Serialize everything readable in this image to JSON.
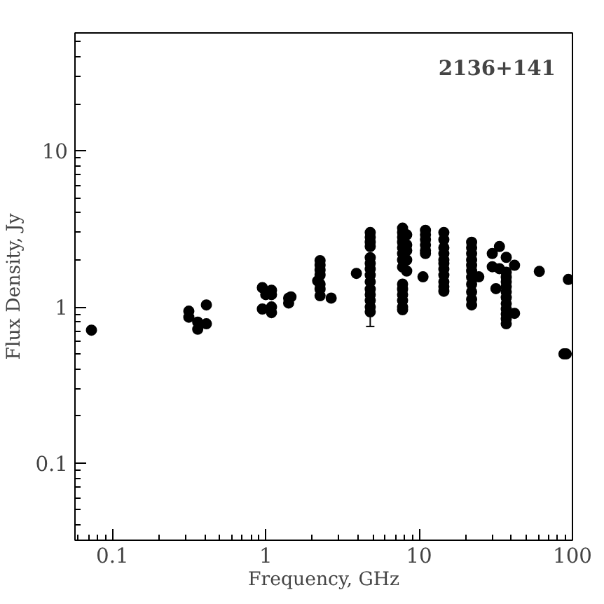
{
  "chart_data": {
    "type": "scatter",
    "xlabel": "Frequency, GHz",
    "ylabel": "Flux Density, Jy",
    "annotations": [
      "2136+141"
    ],
    "log": "xy",
    "marker": "circle",
    "xlim": [
      0.057,
      100
    ],
    "ylim": [
      0.032,
      57
    ],
    "xticks": [
      {
        "value": 0.1,
        "label": "0.1"
      },
      1,
      10,
      100
    ],
    "yticks": [
      {
        "value": 0.1,
        "label": "0.1"
      },
      1,
      10
    ],
    "series": [
      {
        "color": "#000000",
        "x": [
          0.073,
          0.315,
          0.315,
          0.36,
          0.36,
          0.41,
          0.41,
          0.95,
          0.95,
          1.0,
          1.09,
          1.09,
          1.09,
          1.09,
          1.41,
          1.41,
          1.46,
          2.18,
          2.26,
          2.26,
          2.26,
          2.26,
          2.26,
          2.26,
          2.26,
          2.67,
          3.9,
          4.8,
          4.8,
          4.8,
          4.8,
          4.8,
          4.8,
          4.8,
          4.8,
          4.8,
          4.8,
          4.8,
          4.8,
          4.8,
          7.8,
          7.8,
          7.8,
          7.8,
          7.8,
          7.8,
          7.8,
          7.8,
          7.8,
          7.8,
          7.8,
          7.8,
          7.8,
          7.8,
          8.3,
          8.3,
          8.3,
          8.3,
          8.3,
          11,
          11,
          11,
          11,
          11,
          11,
          10.6,
          14.5,
          14.5,
          14.5,
          14.5,
          14.5,
          14.5,
          14.5,
          14.5,
          14.5,
          14.5,
          14.5,
          22,
          22,
          22,
          22,
          22,
          22,
          22,
          22,
          22,
          22,
          22,
          24.5,
          30,
          30,
          33.4,
          33.4,
          31.7,
          37,
          37,
          37,
          37,
          37,
          37,
          37,
          37,
          37,
          37,
          37,
          37,
          41.9,
          41.9,
          60.8,
          94,
          88,
          91
        ],
        "values": [
          0.71,
          0.94,
          0.86,
          0.8,
          0.72,
          0.78,
          1.03,
          1.33,
          0.97,
          1.2,
          1.28,
          1.2,
          1.0,
          0.92,
          1.14,
          1.06,
          1.16,
          1.47,
          1.98,
          1.85,
          1.72,
          1.6,
          1.4,
          1.3,
          1.18,
          1.14,
          1.64,
          3.0,
          2.8,
          2.6,
          2.44,
          2.07,
          1.9,
          1.75,
          1.6,
          1.45,
          1.3,
          1.2,
          1.1,
          1.0,
          3.2,
          3.0,
          2.8,
          2.6,
          2.4,
          2.2,
          2.0,
          1.8,
          1.4,
          1.3,
          1.2,
          1.1,
          1.0,
          0.96,
          2.9,
          2.5,
          2.3,
          2.0,
          1.7,
          3.1,
          2.9,
          2.7,
          2.5,
          2.3,
          2.2,
          1.56,
          3.0,
          2.7,
          2.4,
          2.2,
          2.0,
          1.9,
          1.75,
          1.6,
          1.45,
          1.35,
          1.26,
          2.6,
          2.4,
          2.2,
          2.0,
          1.85,
          1.7,
          1.55,
          1.4,
          1.25,
          1.12,
          1.03,
          1.56,
          2.2,
          1.81,
          2.44,
          1.76,
          1.31,
          2.08,
          1.67,
          1.55,
          1.45,
          1.35,
          1.25,
          1.15,
          1.05,
          0.97,
          0.9,
          0.84,
          0.78,
          1.85,
          0.91,
          1.69,
          1.5,
          0.5,
          0.5
        ]
      },
      {
        "color": "#000000",
        "x": [
          4.8
        ],
        "values": [
          0.93
        ],
        "errors": [
          [
            0.75,
            0.93
          ]
        ]
      }
    ]
  }
}
